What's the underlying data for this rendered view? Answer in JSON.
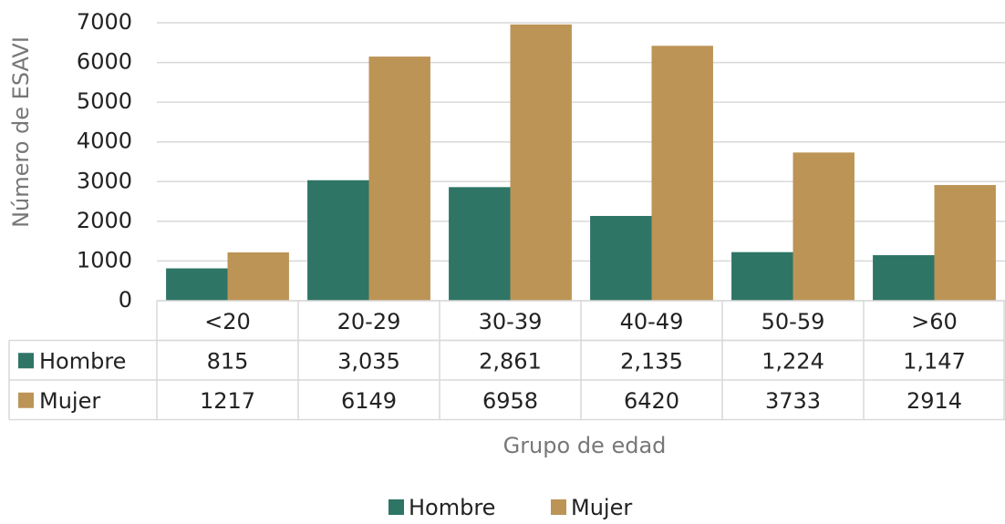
{
  "chart_data": {
    "type": "bar",
    "y_label": "Número de ESAVI",
    "x_label": "Grupo de edad",
    "categories": [
      "<20",
      "20-29",
      "30-39",
      "40-49",
      "50-59",
      ">60"
    ],
    "series": [
      {
        "name": "Hombre",
        "color": "#2e7566",
        "values": [
          815,
          3035,
          2861,
          2135,
          1224,
          1147
        ],
        "value_labels": [
          "815",
          "3,035",
          "2,861",
          "2,135",
          "1,224",
          "1,147"
        ]
      },
      {
        "name": "Mujer",
        "color": "#bc9456",
        "values": [
          1217,
          6149,
          6958,
          6420,
          3733,
          2914
        ]
      }
    ],
    "ylim": [
      0,
      7000
    ],
    "yticks": [
      0,
      1000,
      2000,
      3000,
      4000,
      5000,
      6000,
      7000
    ],
    "grid": true,
    "legend": "bottom"
  }
}
